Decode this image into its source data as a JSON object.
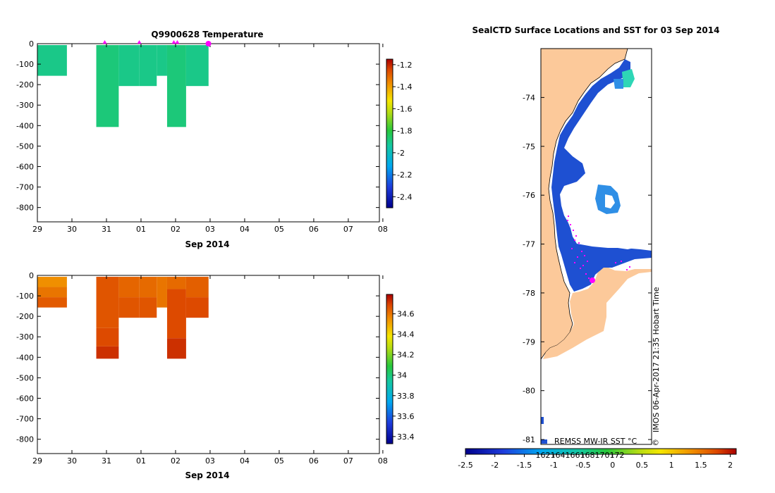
{
  "chart_data": [
    {
      "type": "heatmap",
      "title": "Q9900628  Temperature",
      "xlabel": "Sep 2014",
      "x_ticks": [
        "29",
        "30",
        "31",
        "01",
        "02",
        "03",
        "04",
        "05",
        "06",
        "07",
        "08"
      ],
      "y_ticks": [
        "0",
        "-100",
        "-200",
        "-300",
        "-400",
        "-500",
        "-600",
        "-700",
        "-800"
      ],
      "ylim": [
        -870,
        0
      ],
      "xlim_days": [
        0,
        9.9
      ],
      "colorbar": {
        "ticks": [
          "-1.2",
          "-1.4",
          "-1.6",
          "-1.8",
          "-2",
          "-2.2",
          "-2.4"
        ],
        "range": [
          -2.5,
          -1.15
        ]
      },
      "profile_markers_days": [
        1.95,
        2.95,
        3.95,
        4.05
      ],
      "cells": [
        {
          "d0": 0.0,
          "d1": 0.85,
          "z0": 0,
          "z1": -150,
          "v": -1.9
        },
        {
          "d0": 1.7,
          "d1": 2.35,
          "z0": 0,
          "z1": -400,
          "v": -1.88
        },
        {
          "d0": 2.35,
          "d1": 2.95,
          "z0": 0,
          "z1": -200,
          "v": -1.9
        },
        {
          "d0": 2.95,
          "d1": 3.45,
          "z0": 0,
          "z1": -200,
          "v": -1.9
        },
        {
          "d0": 3.45,
          "d1": 3.75,
          "z0": 0,
          "z1": -150,
          "v": -1.9
        },
        {
          "d0": 3.75,
          "d1": 4.3,
          "z0": 0,
          "z1": -400,
          "v": -1.88
        },
        {
          "d0": 4.3,
          "d1": 4.95,
          "z0": 0,
          "z1": -200,
          "v": -1.9
        }
      ]
    },
    {
      "type": "heatmap",
      "title": "",
      "xlabel": "Sep 2014",
      "x_ticks": [
        "29",
        "30",
        "31",
        "01",
        "02",
        "03",
        "04",
        "05",
        "06",
        "07",
        "08"
      ],
      "y_ticks": [
        "0",
        "-100",
        "-200",
        "-300",
        "-400",
        "-500",
        "-600",
        "-700",
        "-800"
      ],
      "ylim": [
        -870,
        0
      ],
      "xlim_days": [
        0,
        9.9
      ],
      "colorbar": {
        "ticks": [
          "34.6",
          "34.4",
          "34.2",
          "34",
          "33.8",
          "33.6",
          "33.4"
        ],
        "range": [
          33.33,
          34.79
        ]
      },
      "cells": [
        {
          "d0": 0.0,
          "d1": 0.85,
          "z0": 0,
          "z1": -50,
          "v": 34.55
        },
        {
          "d0": 0.0,
          "d1": 0.85,
          "z0": -50,
          "z1": -100,
          "v": 34.6
        },
        {
          "d0": 0.0,
          "d1": 0.85,
          "z0": -100,
          "z1": -150,
          "v": 34.65
        },
        {
          "d0": 1.7,
          "d1": 2.35,
          "z0": 0,
          "z1": -250,
          "v": 34.66
        },
        {
          "d0": 1.7,
          "d1": 2.35,
          "z0": -250,
          "z1": -340,
          "v": 34.68
        },
        {
          "d0": 1.7,
          "d1": 2.35,
          "z0": -340,
          "z1": -400,
          "v": 34.72
        },
        {
          "d0": 2.35,
          "d1": 2.95,
          "z0": 0,
          "z1": -100,
          "v": 34.63
        },
        {
          "d0": 2.35,
          "d1": 2.95,
          "z0": -100,
          "z1": -200,
          "v": 34.66
        },
        {
          "d0": 2.95,
          "d1": 3.45,
          "z0": 0,
          "z1": -100,
          "v": 34.62
        },
        {
          "d0": 2.95,
          "d1": 3.45,
          "z0": -100,
          "z1": -200,
          "v": 34.66
        },
        {
          "d0": 3.45,
          "d1": 3.75,
          "z0": 0,
          "z1": -150,
          "v": 34.6
        },
        {
          "d0": 3.75,
          "d1": 4.3,
          "z0": 0,
          "z1": -60,
          "v": 34.62
        },
        {
          "d0": 3.75,
          "d1": 4.3,
          "z0": -60,
          "z1": -300,
          "v": 34.68
        },
        {
          "d0": 3.75,
          "d1": 4.3,
          "z0": -300,
          "z1": -400,
          "v": 34.72
        },
        {
          "d0": 4.3,
          "d1": 4.95,
          "z0": 0,
          "z1": -100,
          "v": 34.64
        },
        {
          "d0": 4.3,
          "d1": 4.95,
          "z0": -100,
          "z1": -200,
          "v": 34.68
        }
      ]
    },
    {
      "type": "map",
      "title": "SealCTD Surface Locations and SST for 03 Sep 2014",
      "lat_ticks": [
        "-74",
        "-75",
        "-76",
        "-77",
        "-78",
        "-79",
        "-80",
        "-81"
      ],
      "lat_range": [
        -81.1,
        -73.0
      ],
      "colorbar_label": "REMSS MW-IR SST °C",
      "colorbar_ticks": [
        "-2.5",
        "-2",
        "-1.5",
        "-1",
        "-0.5",
        "0",
        "0.5",
        "1",
        "1.5",
        "2"
      ],
      "colorbar_range": [
        -2.5,
        2.1
      ],
      "colorbar_inner_ticks": [
        "162",
        "164",
        "166",
        "168",
        "170",
        "172"
      ],
      "watermark": "IMOS 06-Apr-2017 21:35 Hobart Time",
      "copyright": "©"
    }
  ],
  "colors": {
    "land": "#fcc99a",
    "sst_deep_blue": "#1e50d2",
    "sst_mid_blue": "#2f8fe6",
    "sst_teal": "#2ed6b6",
    "track_magenta": "#ff00ff"
  }
}
